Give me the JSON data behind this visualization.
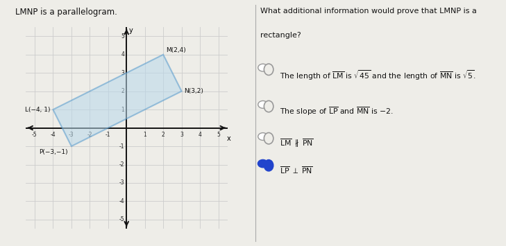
{
  "title_left": "LMNP is a parallelogram.",
  "title_right_line1": "What additional information would prove that LMNP is a",
  "title_right_line2": "rectangle?",
  "points": {
    "L": [
      -4,
      1
    ],
    "M": [
      2,
      4
    ],
    "N": [
      3,
      2
    ],
    "P": [
      -3,
      -1
    ]
  },
  "point_labels": {
    "L": "L(−4, 1)",
    "M": "M(2,4)",
    "N": "N(3,2)",
    "P": "P(−3,−1)"
  },
  "poly_fill_color": "#b8d8ea",
  "poly_edge_color": "#5599cc",
  "poly_alpha": 0.55,
  "xlim": [
    -5.5,
    5.5
  ],
  "ylim": [
    -5.5,
    5.5
  ],
  "xticks": [
    -5,
    -4,
    -3,
    -2,
    -1,
    1,
    2,
    3,
    4,
    5
  ],
  "yticks": [
    -5,
    -4,
    -3,
    -2,
    -1,
    1,
    2,
    3,
    4,
    5
  ],
  "grid_color": "#cccccc",
  "axis_color": "#111111",
  "bg_color": "#eeede8",
  "option1_text1": "The length of ",
  "option1_text2": "LM",
  "option1_text3": " is √45 and the length of ",
  "option1_text4": "MN",
  "option1_text5": " is √5.",
  "option2_text1": "The slope of ",
  "option2_text2": "LP",
  "option2_text3": " and ",
  "option2_text4": "MN",
  "option2_text5": " is −2.",
  "option3_text1": "LM",
  "option3_text2": " ∕∕ ",
  "option3_text3": "PN",
  "option4_text1": "LP",
  "option4_text2": " ⊥ ",
  "option4_text3": "PN",
  "radio_fill_selected": "#2244cc",
  "radio_fill_unselected": "#dddddd",
  "radio_stroke": "#888888",
  "selected_index": 3
}
